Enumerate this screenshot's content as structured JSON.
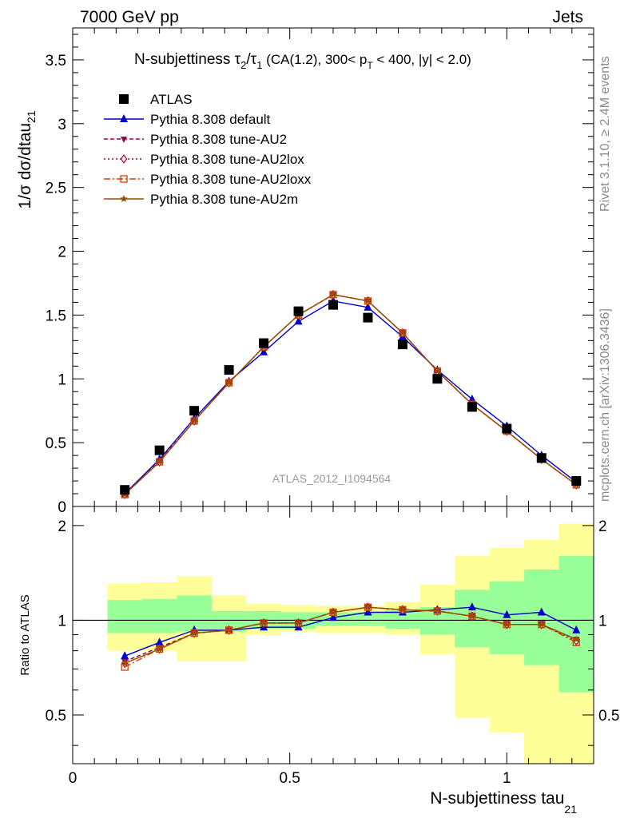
{
  "header": {
    "left": "7000 GeV pp",
    "right": "Jets"
  },
  "side_labels": {
    "upper": "Rivet 3.1.10, ≥ 2.4M events",
    "lower": "mcplots.cern.ch [arXiv:1306.3436]"
  },
  "chart_data": [
    {
      "type": "line",
      "title_main": "N-subjettiness τ",
      "title_sub2": "2",
      "title_slash": "/τ",
      "title_sub1": "1",
      "title_rest": " (CA(1.2), 300< p",
      "title_subT": "T",
      "title_tail": " < 400, |y| < 2.0)",
      "ylabel_main": "1/σ dσ/dtau",
      "ylabel_sub": "21",
      "watermark": "ATLAS_2012_I1094564",
      "xlim": [
        0,
        1.2
      ],
      "ylim": [
        0,
        3.75
      ],
      "yticks": [
        "0",
        "0.5",
        "1",
        "1.5",
        "2",
        "2.5",
        "3",
        "3.5"
      ],
      "ytick_values": [
        0,
        0.5,
        1,
        1.5,
        2,
        2.5,
        3,
        3.5
      ],
      "legend_position": "top-left",
      "x": [
        0.12,
        0.2,
        0.28,
        0.36,
        0.44,
        0.52,
        0.6,
        0.68,
        0.76,
        0.84,
        0.92,
        1.0,
        1.08,
        1.16
      ],
      "series": [
        {
          "name": "ATLAS",
          "color": "#000000",
          "marker": "square",
          "values": [
            0.13,
            0.44,
            0.75,
            1.07,
            1.28,
            1.53,
            1.58,
            1.48,
            1.27,
            1.0,
            0.78,
            0.61,
            0.38,
            0.2
          ]
        },
        {
          "name": "Pythia 8.308 default",
          "color": "#0000cc",
          "marker": "triangle",
          "dash": "",
          "values": [
            0.1,
            0.37,
            0.69,
            0.98,
            1.21,
            1.45,
            1.61,
            1.56,
            1.33,
            1.07,
            0.84,
            0.63,
            0.4,
            0.19
          ]
        },
        {
          "name": "Pythia 8.308 tune-AU2",
          "color": "#99004d",
          "marker": "triangle-down",
          "dash": "5,3",
          "values": [
            0.095,
            0.36,
            0.67,
            0.97,
            1.25,
            1.5,
            1.66,
            1.61,
            1.36,
            1.06,
            0.8,
            0.59,
            0.37,
            0.17
          ]
        },
        {
          "name": "Pythia 8.308 tune-AU2lox",
          "color": "#b3003b",
          "marker": "diamond",
          "dash": "2,3",
          "values": [
            0.095,
            0.35,
            0.67,
            0.97,
            1.25,
            1.5,
            1.66,
            1.61,
            1.36,
            1.06,
            0.8,
            0.59,
            0.37,
            0.17
          ]
        },
        {
          "name": "Pythia 8.308 tune-AU2loxx",
          "color": "#cc4400",
          "marker": "square-open",
          "dash": "8,3,2,3",
          "values": [
            0.093,
            0.35,
            0.67,
            0.97,
            1.25,
            1.5,
            1.66,
            1.61,
            1.36,
            1.06,
            0.8,
            0.59,
            0.37,
            0.17
          ]
        },
        {
          "name": "Pythia 8.308 tune-AU2m",
          "color": "#994d00",
          "marker": "star",
          "dash": "",
          "values": [
            0.095,
            0.35,
            0.67,
            0.97,
            1.25,
            1.5,
            1.66,
            1.61,
            1.36,
            1.06,
            0.8,
            0.59,
            0.37,
            0.17
          ]
        }
      ]
    },
    {
      "type": "line",
      "ylabel": "Ratio to ATLAS",
      "xlabel_main": "N-subjettiness tau",
      "xlabel_sub": "21",
      "xlim": [
        0,
        1.2
      ],
      "ylim": [
        0.35,
        2.3
      ],
      "yticks": [
        "0.5",
        "1",
        "2"
      ],
      "ytick_values": [
        0.5,
        1,
        2
      ],
      "xticks": [
        "0",
        "0.5",
        "1"
      ],
      "xtick_values": [
        0,
        0.5,
        1
      ],
      "reference": 1,
      "bin_edges": [
        0.08,
        0.16,
        0.24,
        0.32,
        0.4,
        0.48,
        0.56,
        0.64,
        0.72,
        0.8,
        0.88,
        0.96,
        1.04,
        1.12,
        1.2
      ],
      "band_stat": [
        [
          0.91,
          1.16
        ],
        [
          0.91,
          1.17
        ],
        [
          0.92,
          1.2
        ],
        [
          0.92,
          1.07
        ],
        [
          0.94,
          1.07
        ],
        [
          0.94,
          1.06
        ],
        [
          0.96,
          1.06
        ],
        [
          0.96,
          1.06
        ],
        [
          0.94,
          1.08
        ],
        [
          0.9,
          1.1
        ],
        [
          0.82,
          1.25
        ],
        [
          0.78,
          1.33
        ],
        [
          0.72,
          1.45
        ],
        [
          0.59,
          1.6
        ]
      ],
      "band_total": [
        [
          0.8,
          1.31
        ],
        [
          0.8,
          1.32
        ],
        [
          0.74,
          1.38
        ],
        [
          0.74,
          1.2
        ],
        [
          0.9,
          1.13
        ],
        [
          0.92,
          1.12
        ],
        [
          0.91,
          1.11
        ],
        [
          0.91,
          1.11
        ],
        [
          0.9,
          1.14
        ],
        [
          0.78,
          1.3
        ],
        [
          0.49,
          1.6
        ],
        [
          0.44,
          1.7
        ],
        [
          0.35,
          1.8
        ],
        [
          0.35,
          2.03
        ]
      ],
      "x": [
        0.12,
        0.2,
        0.28,
        0.36,
        0.44,
        0.52,
        0.6,
        0.68,
        0.76,
        0.84,
        0.92,
        1.0,
        1.08,
        1.16
      ],
      "series": [
        {
          "name": "Pythia 8.308 default",
          "color": "#0000cc",
          "marker": "triangle",
          "dash": "",
          "values": [
            0.77,
            0.85,
            0.93,
            0.93,
            0.95,
            0.95,
            1.02,
            1.06,
            1.06,
            1.08,
            1.1,
            1.04,
            1.06,
            0.93
          ]
        },
        {
          "name": "Pythia 8.308 tune-AU2",
          "color": "#99004d",
          "marker": "triangle-down",
          "dash": "5,3",
          "values": [
            0.74,
            0.82,
            0.91,
            0.93,
            0.98,
            0.98,
            1.06,
            1.1,
            1.08,
            1.07,
            1.03,
            0.97,
            0.97,
            0.87
          ]
        },
        {
          "name": "Pythia 8.308 tune-AU2lox",
          "color": "#b3003b",
          "marker": "diamond",
          "dash": "2,3",
          "values": [
            0.73,
            0.81,
            0.91,
            0.93,
            0.98,
            0.98,
            1.06,
            1.1,
            1.08,
            1.07,
            1.03,
            0.97,
            0.97,
            0.86
          ]
        },
        {
          "name": "Pythia 8.308 tune-AU2loxx",
          "color": "#cc4400",
          "marker": "square-open",
          "dash": "8,3,2,3",
          "values": [
            0.71,
            0.81,
            0.91,
            0.93,
            0.98,
            0.98,
            1.06,
            1.1,
            1.08,
            1.07,
            1.03,
            0.97,
            0.97,
            0.85
          ]
        },
        {
          "name": "Pythia 8.308 tune-AU2m",
          "color": "#994d00",
          "marker": "star",
          "dash": "",
          "values": [
            0.73,
            0.81,
            0.91,
            0.93,
            0.98,
            0.98,
            1.06,
            1.1,
            1.08,
            1.07,
            1.03,
            0.97,
            0.97,
            0.87
          ]
        }
      ]
    }
  ],
  "colors": {
    "band_stat": "#99ff99",
    "band_total": "#ffff99",
    "watermark": "#9a9a9a"
  }
}
